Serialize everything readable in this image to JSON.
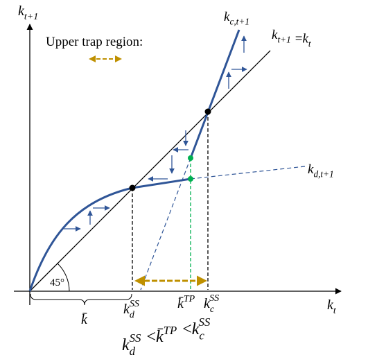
{
  "labels": {
    "y_axis": {
      "base": "k",
      "sub": "t+1"
    },
    "x_axis": {
      "base": "k",
      "sub": "t"
    },
    "trap_region": "Upper trap region:",
    "kc_curve": {
      "base": "k",
      "sub": "c,t+1"
    },
    "diagonal": {
      "left": {
        "base": "k",
        "sub": "t+1"
      },
      "eq": "=",
      "right": {
        "base": "k",
        "sub": "t"
      }
    },
    "kd_curve": {
      "base": "k",
      "sub": "d,t+1"
    },
    "angle": "45°",
    "kbar": {
      "base": "k̄"
    },
    "kd_ss": {
      "base": "k",
      "sub": "d",
      "sup": "SS"
    },
    "kbar_tp": {
      "base": "k̄",
      "sup": "TP"
    },
    "kc_ss": {
      "base": "k",
      "sub": "c",
      "sup": "SS"
    }
  },
  "inequality": {
    "terms": [
      {
        "base": "k",
        "sub": "d",
        "sup": "SS"
      },
      {
        "base": "k̄",
        "sup": "TP"
      },
      {
        "base": "k",
        "sub": "c",
        "sup": "SS"
      }
    ],
    "ops": [
      "<",
      "<"
    ]
  }
}
